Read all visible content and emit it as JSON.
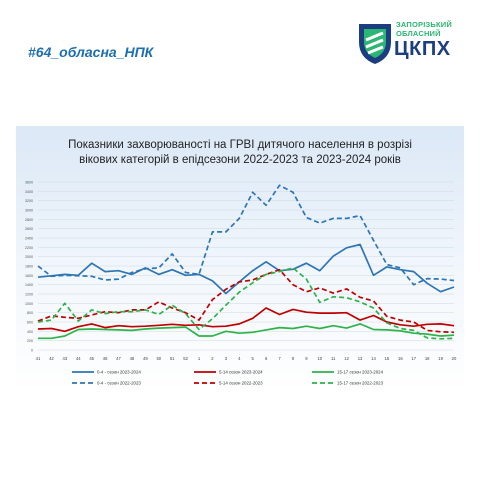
{
  "hashtag": "#64_обласна_НПК",
  "logo": {
    "line1": "ЗАПОРІЗЬКИЙ",
    "line2": "ОБЛАСНИЙ",
    "main": "ЦКПХ",
    "colors": {
      "blue": "#1c3e80",
      "green": "#2bb673"
    }
  },
  "chart_data": {
    "type": "line",
    "title_line1": "Показники захворюваності на ГРВІ дитячого населення в розрізі",
    "title_line2": "вікових категорій в епідсезони 2022-2023 та 2023-2024 років",
    "categories": [
      "41",
      "42",
      "43",
      "44",
      "45",
      "46",
      "47",
      "48",
      "49",
      "50",
      "51",
      "52",
      "1",
      "2",
      "3",
      "4",
      "5",
      "6",
      "7",
      "8",
      "9",
      "10",
      "11",
      "12",
      "13",
      "14",
      "15",
      "16",
      "17",
      "18",
      "19",
      "20"
    ],
    "y_ticks": [
      0,
      200,
      400,
      600,
      800,
      1000,
      1200,
      1400,
      1600,
      1800,
      2000,
      2200,
      2400,
      2600,
      2800,
      3000,
      3200,
      3400,
      3600
    ],
    "ylim": [
      0,
      3600
    ],
    "grid": true,
    "legend_position": "bottom",
    "series": [
      {
        "name": "0-4 - сезон 2023-2024",
        "color": "#2e75b6",
        "dash": false,
        "values": [
          1560,
          1590,
          1620,
          1600,
          1860,
          1680,
          1700,
          1620,
          1760,
          1620,
          1720,
          1600,
          1620,
          1480,
          1210,
          1460,
          1700,
          1890,
          1700,
          1730,
          1860,
          1700,
          2010,
          2190,
          2260,
          1600,
          1780,
          1720,
          1680,
          1430,
          1250,
          1350
        ]
      },
      {
        "name": "5-14 сезон 2023-2024",
        "color": "#c00000",
        "dash": false,
        "values": [
          450,
          460,
          400,
          500,
          560,
          480,
          520,
          500,
          510,
          530,
          550,
          530,
          540,
          500,
          510,
          560,
          680,
          900,
          760,
          870,
          810,
          790,
          790,
          800,
          640,
          740,
          600,
          540,
          510,
          550,
          560,
          520
        ]
      },
      {
        "name": "15-17 сезон 2023-2024",
        "color": "#2db34a",
        "dash": false,
        "values": [
          250,
          250,
          300,
          440,
          450,
          440,
          430,
          420,
          450,
          470,
          480,
          490,
          300,
          300,
          400,
          360,
          380,
          430,
          480,
          460,
          510,
          460,
          520,
          470,
          560,
          440,
          430,
          410,
          360,
          340,
          300,
          320
        ]
      },
      {
        "name": "0-4 - сезон 2022-2023",
        "color": "#2e75b6",
        "dash": true,
        "values": [
          1800,
          1580,
          1600,
          1590,
          1580,
          1500,
          1520,
          1660,
          1740,
          1760,
          2060,
          1660,
          1620,
          2530,
          2530,
          2820,
          3380,
          3100,
          3530,
          3380,
          2840,
          2720,
          2820,
          2820,
          2880,
          2350,
          1830,
          1760,
          1400,
          1530,
          1520,
          1490
        ]
      },
      {
        "name": "5-14 сезон 2022-2023",
        "color": "#c00000",
        "dash": true,
        "values": [
          620,
          730,
          700,
          680,
          750,
          820,
          800,
          860,
          860,
          1030,
          900,
          800,
          640,
          1080,
          1300,
          1460,
          1500,
          1620,
          1720,
          1400,
          1250,
          1330,
          1220,
          1310,
          1130,
          1050,
          720,
          640,
          600,
          420,
          390,
          380
        ]
      },
      {
        "name": "15-17 сезон 2022-2023",
        "color": "#2db34a",
        "dash": true,
        "values": [
          600,
          640,
          1000,
          620,
          860,
          780,
          820,
          820,
          860,
          760,
          960,
          780,
          440,
          670,
          960,
          1240,
          1440,
          1620,
          1680,
          1760,
          1520,
          1020,
          1140,
          1120,
          1030,
          900,
          580,
          460,
          420,
          260,
          240,
          250
        ]
      }
    ]
  }
}
